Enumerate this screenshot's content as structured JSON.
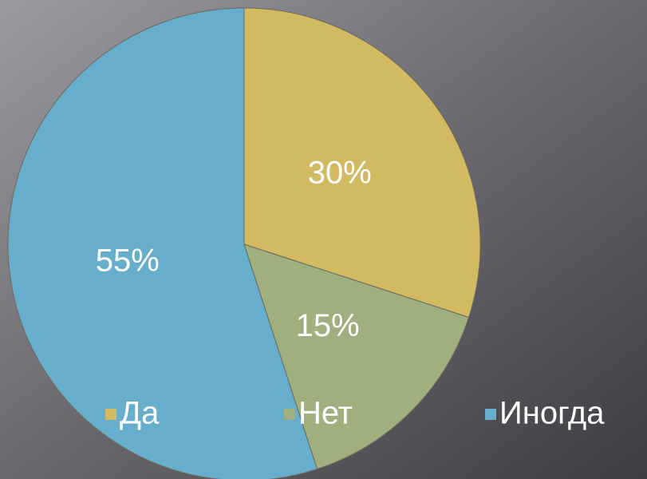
{
  "chart_data": {
    "type": "pie",
    "categories": [
      "Да",
      "Нет",
      "Иногда"
    ],
    "values": [
      30,
      15,
      55
    ],
    "value_labels": [
      "30%",
      "15%",
      "55%"
    ],
    "colors": [
      "#d2ba63",
      "#9fb07e",
      "#66aecb"
    ],
    "legend": "bottom"
  }
}
